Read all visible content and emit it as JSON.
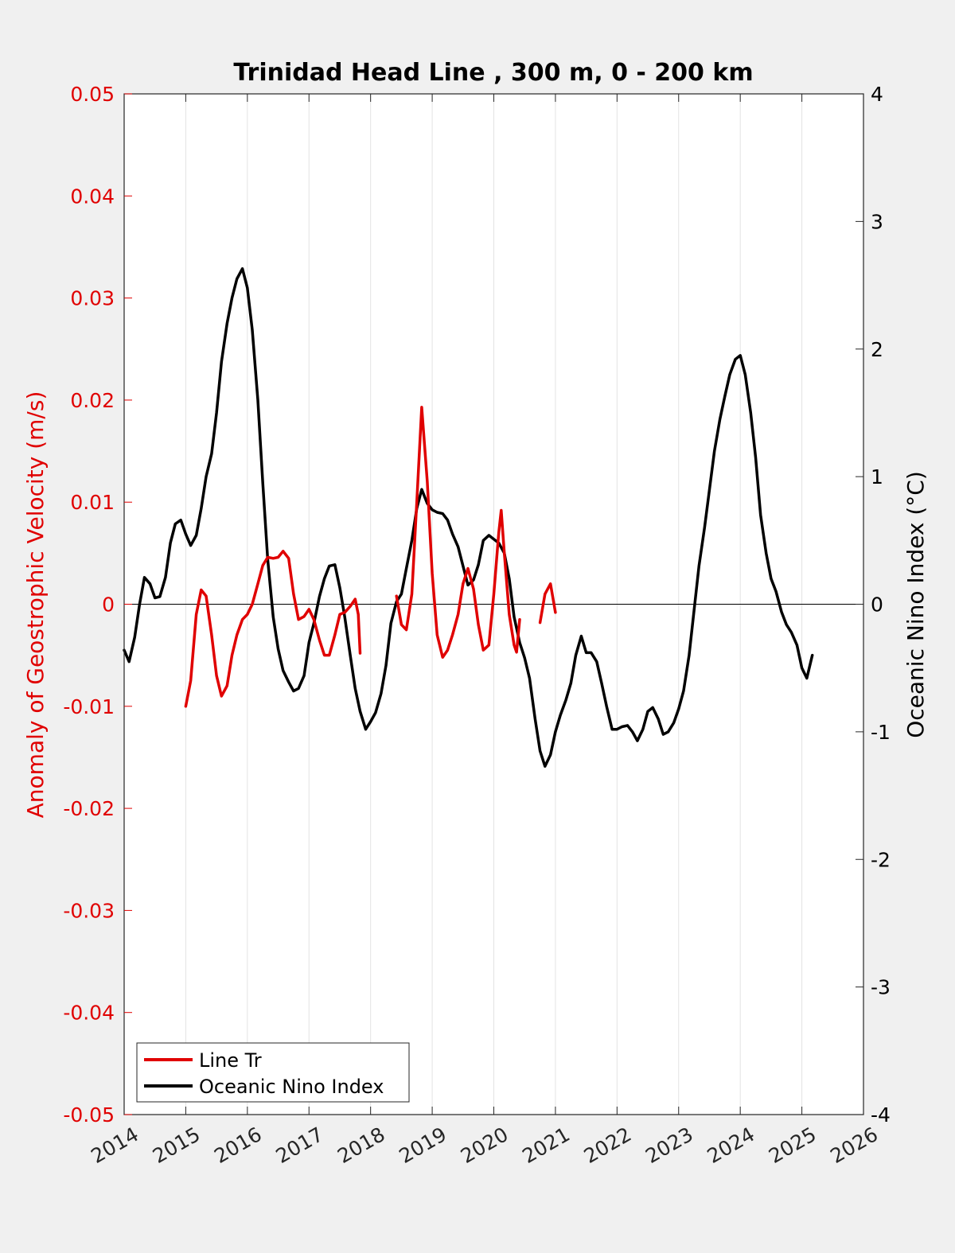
{
  "chart_data": {
    "type": "line",
    "title": "Trinidad Head Line , 300 m, 0 - 200 km",
    "ylabel_left": "Anomaly of Geostrophic Velocity (m/s)",
    "ylabel_right": "Oceanic Nino Index (°C)",
    "xlim": [
      2014,
      2026
    ],
    "ylim_left": [
      -0.05,
      0.05
    ],
    "ylim_right": [
      -4,
      4
    ],
    "x_ticks": [
      "2014",
      "2015",
      "2016",
      "2017",
      "2018",
      "2019",
      "2020",
      "2021",
      "2022",
      "2023",
      "2024",
      "2025",
      "2026"
    ],
    "y_left_ticks": [
      "-0.05",
      "-0.04",
      "-0.03",
      "-0.02",
      "-0.01",
      "0",
      "0.01",
      "0.02",
      "0.03",
      "0.04",
      "0.05"
    ],
    "y_right_ticks": [
      "-4",
      "-3",
      "-2",
      "-1",
      "0",
      "1",
      "2",
      "3",
      "4"
    ],
    "grid": "vertical",
    "zero_line": true,
    "legend_position": "bottom-left",
    "colors": {
      "line_tr": "#e00000",
      "oni": "#000000",
      "axis_left": "#e00000"
    },
    "series": [
      {
        "name": "Line Tr",
        "axis": "left",
        "color": "#e00000",
        "segments": [
          [
            [
              2015.0,
              -0.01
            ],
            [
              2015.08,
              -0.0075
            ],
            [
              2015.17,
              -0.001
            ],
            [
              2015.25,
              0.0014
            ],
            [
              2015.33,
              0.0008
            ],
            [
              2015.42,
              -0.003
            ],
            [
              2015.5,
              -0.007
            ],
            [
              2015.58,
              -0.009
            ],
            [
              2015.67,
              -0.008
            ],
            [
              2015.75,
              -0.005
            ],
            [
              2015.83,
              -0.003
            ],
            [
              2015.92,
              -0.0015
            ],
            [
              2016.0,
              -0.001
            ],
            [
              2016.08,
              0.0
            ],
            [
              2016.17,
              0.002
            ],
            [
              2016.25,
              0.0038
            ],
            [
              2016.33,
              0.0046
            ],
            [
              2016.42,
              0.0045
            ],
            [
              2016.5,
              0.0046
            ],
            [
              2016.58,
              0.0052
            ],
            [
              2016.67,
              0.0045
            ],
            [
              2016.75,
              0.001
            ],
            [
              2016.83,
              -0.0015
            ],
            [
              2016.92,
              -0.0012
            ],
            [
              2017.0,
              -0.0005
            ],
            [
              2017.08,
              -0.0015
            ],
            [
              2017.17,
              -0.0035
            ],
            [
              2017.25,
              -0.005
            ],
            [
              2017.33,
              -0.005
            ],
            [
              2017.42,
              -0.003
            ],
            [
              2017.5,
              -0.001
            ],
            [
              2017.58,
              -0.0008
            ],
            [
              2017.67,
              -0.0002
            ],
            [
              2017.75,
              0.0005
            ],
            [
              2017.8,
              -0.001
            ],
            [
              2017.83,
              -0.0048
            ]
          ],
          [
            [
              2018.42,
              0.0008
            ],
            [
              2018.5,
              -0.002
            ],
            [
              2018.58,
              -0.0025
            ],
            [
              2018.67,
              0.001
            ],
            [
              2018.75,
              0.01
            ],
            [
              2018.83,
              0.0193
            ],
            [
              2018.92,
              0.012
            ],
            [
              2019.0,
              0.003
            ],
            [
              2019.08,
              -0.003
            ],
            [
              2019.17,
              -0.0052
            ],
            [
              2019.25,
              -0.0045
            ],
            [
              2019.33,
              -0.003
            ],
            [
              2019.42,
              -0.001
            ],
            [
              2019.5,
              0.002
            ],
            [
              2019.58,
              0.0035
            ],
            [
              2019.67,
              0.0015
            ],
            [
              2019.75,
              -0.002
            ],
            [
              2019.83,
              -0.0045
            ],
            [
              2019.92,
              -0.004
            ],
            [
              2020.0,
              0.001
            ],
            [
              2020.08,
              0.007
            ],
            [
              2020.12,
              0.0092
            ],
            [
              2020.17,
              0.005
            ],
            [
              2020.25,
              -0.001
            ],
            [
              2020.33,
              -0.004
            ],
            [
              2020.37,
              -0.0047
            ],
            [
              2020.42,
              -0.0015
            ]
          ],
          [
            [
              2020.75,
              -0.0018
            ],
            [
              2020.83,
              0.001
            ],
            [
              2020.92,
              0.002
            ],
            [
              2021.0,
              -0.0008
            ]
          ]
        ]
      },
      {
        "name": "Oceanic Nino Index",
        "axis": "right",
        "color": "#000000",
        "segments": [
          [
            [
              2014.0,
              -0.36
            ],
            [
              2014.08,
              -0.45
            ],
            [
              2014.17,
              -0.26
            ],
            [
              2014.25,
              0.0
            ],
            [
              2014.33,
              0.21
            ],
            [
              2014.42,
              0.16
            ],
            [
              2014.5,
              0.05
            ],
            [
              2014.58,
              0.06
            ],
            [
              2014.67,
              0.21
            ],
            [
              2014.75,
              0.48
            ],
            [
              2014.83,
              0.63
            ],
            [
              2014.92,
              0.66
            ],
            [
              2015.0,
              0.55
            ],
            [
              2015.08,
              0.46
            ],
            [
              2015.17,
              0.54
            ],
            [
              2015.25,
              0.75
            ],
            [
              2015.33,
              1.0
            ],
            [
              2015.42,
              1.18
            ],
            [
              2015.5,
              1.5
            ],
            [
              2015.58,
              1.9
            ],
            [
              2015.67,
              2.2
            ],
            [
              2015.75,
              2.4
            ],
            [
              2015.83,
              2.55
            ],
            [
              2015.92,
              2.63
            ],
            [
              2016.0,
              2.48
            ],
            [
              2016.08,
              2.15
            ],
            [
              2016.17,
              1.6
            ],
            [
              2016.25,
              0.95
            ],
            [
              2016.33,
              0.35
            ],
            [
              2016.42,
              -0.1
            ],
            [
              2016.5,
              -0.35
            ],
            [
              2016.58,
              -0.52
            ],
            [
              2016.67,
              -0.61
            ],
            [
              2016.75,
              -0.68
            ],
            [
              2016.83,
              -0.66
            ],
            [
              2016.92,
              -0.56
            ],
            [
              2017.0,
              -0.3
            ],
            [
              2017.08,
              -0.15
            ],
            [
              2017.17,
              0.06
            ],
            [
              2017.25,
              0.2
            ],
            [
              2017.33,
              0.3
            ],
            [
              2017.42,
              0.31
            ],
            [
              2017.5,
              0.13
            ],
            [
              2017.58,
              -0.1
            ],
            [
              2017.67,
              -0.4
            ],
            [
              2017.75,
              -0.66
            ],
            [
              2017.83,
              -0.84
            ],
            [
              2017.92,
              -0.98
            ],
            [
              2018.0,
              -0.92
            ],
            [
              2018.08,
              -0.85
            ],
            [
              2018.17,
              -0.7
            ],
            [
              2018.25,
              -0.48
            ],
            [
              2018.33,
              -0.15
            ],
            [
              2018.42,
              0.02
            ],
            [
              2018.5,
              0.08
            ],
            [
              2018.58,
              0.28
            ],
            [
              2018.67,
              0.5
            ],
            [
              2018.75,
              0.75
            ],
            [
              2018.83,
              0.9
            ],
            [
              2018.92,
              0.79
            ],
            [
              2019.0,
              0.74
            ],
            [
              2019.08,
              0.72
            ],
            [
              2019.17,
              0.71
            ],
            [
              2019.25,
              0.66
            ],
            [
              2019.33,
              0.55
            ],
            [
              2019.42,
              0.45
            ],
            [
              2019.5,
              0.3
            ],
            [
              2019.58,
              0.15
            ],
            [
              2019.67,
              0.19
            ],
            [
              2019.75,
              0.31
            ],
            [
              2019.83,
              0.5
            ],
            [
              2019.92,
              0.54
            ],
            [
              2020.0,
              0.51
            ],
            [
              2020.08,
              0.48
            ],
            [
              2020.17,
              0.4
            ],
            [
              2020.25,
              0.2
            ],
            [
              2020.33,
              -0.1
            ],
            [
              2020.42,
              -0.3
            ],
            [
              2020.5,
              -0.42
            ],
            [
              2020.58,
              -0.58
            ],
            [
              2020.67,
              -0.9
            ],
            [
              2020.75,
              -1.15
            ],
            [
              2020.83,
              -1.27
            ],
            [
              2020.92,
              -1.18
            ],
            [
              2021.0,
              -1.0
            ],
            [
              2021.08,
              -0.87
            ],
            [
              2021.17,
              -0.75
            ],
            [
              2021.25,
              -0.62
            ],
            [
              2021.33,
              -0.4
            ],
            [
              2021.42,
              -0.25
            ],
            [
              2021.5,
              -0.38
            ],
            [
              2021.58,
              -0.38
            ],
            [
              2021.67,
              -0.45
            ],
            [
              2021.75,
              -0.62
            ],
            [
              2021.83,
              -0.8
            ],
            [
              2021.92,
              -0.98
            ],
            [
              2022.0,
              -0.98
            ],
            [
              2022.08,
              -0.96
            ],
            [
              2022.17,
              -0.95
            ],
            [
              2022.25,
              -1.0
            ],
            [
              2022.33,
              -1.07
            ],
            [
              2022.42,
              -0.98
            ],
            [
              2022.5,
              -0.84
            ],
            [
              2022.58,
              -0.81
            ],
            [
              2022.67,
              -0.9
            ],
            [
              2022.75,
              -1.02
            ],
            [
              2022.83,
              -1.0
            ],
            [
              2022.92,
              -0.93
            ],
            [
              2023.0,
              -0.82
            ],
            [
              2023.08,
              -0.68
            ],
            [
              2023.17,
              -0.4
            ],
            [
              2023.25,
              -0.05
            ],
            [
              2023.33,
              0.3
            ],
            [
              2023.42,
              0.6
            ],
            [
              2023.5,
              0.9
            ],
            [
              2023.58,
              1.2
            ],
            [
              2023.67,
              1.45
            ],
            [
              2023.75,
              1.63
            ],
            [
              2023.83,
              1.8
            ],
            [
              2023.92,
              1.92
            ],
            [
              2024.0,
              1.95
            ],
            [
              2024.08,
              1.8
            ],
            [
              2024.17,
              1.5
            ],
            [
              2024.25,
              1.15
            ],
            [
              2024.33,
              0.7
            ],
            [
              2024.42,
              0.4
            ],
            [
              2024.5,
              0.2
            ],
            [
              2024.58,
              0.1
            ],
            [
              2024.67,
              -0.06
            ],
            [
              2024.75,
              -0.16
            ],
            [
              2024.83,
              -0.22
            ],
            [
              2024.92,
              -0.32
            ],
            [
              2025.0,
              -0.5
            ],
            [
              2025.08,
              -0.58
            ],
            [
              2025.17,
              -0.4
            ]
          ]
        ]
      }
    ]
  },
  "legend": {
    "entries": [
      {
        "label": "Line Tr",
        "color": "#e00000"
      },
      {
        "label": "Oceanic Nino Index",
        "color": "#000000"
      }
    ]
  }
}
